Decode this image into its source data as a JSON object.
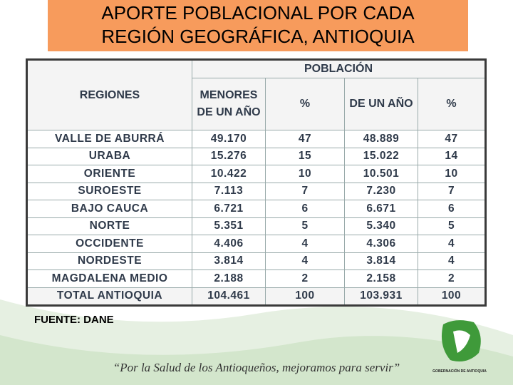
{
  "title": [
    "APORTE POBLACIONAL POR CADA",
    "REGIÓN GEOGRÁFICA, ANTIOQUIA"
  ],
  "table": {
    "group_header": "POBLACIÓN",
    "headers": [
      "REGIONES",
      "MENORES DE UN AÑO",
      "%",
      "DE UN AÑO",
      "%"
    ],
    "rows": [
      [
        "VALLE DE ABURRÁ",
        "49.170",
        "47",
        "48.889",
        "47"
      ],
      [
        "URABA",
        "15.276",
        "15",
        "15.022",
        "14"
      ],
      [
        "ORIENTE",
        "10.422",
        "10",
        "10.501",
        "10"
      ],
      [
        "SUROESTE",
        "7.113",
        "7",
        "7.230",
        "7"
      ],
      [
        "BAJO CAUCA",
        "6.721",
        "6",
        "6.671",
        "6"
      ],
      [
        "NORTE",
        "5.351",
        "5",
        "5.340",
        "5"
      ],
      [
        "OCCIDENTE",
        "4.406",
        "4",
        "4.306",
        "4"
      ],
      [
        "NORDESTE",
        "3.814",
        "4",
        "3.814",
        "4"
      ],
      [
        "MAGDALENA MEDIO",
        "2.188",
        "2",
        "2.158",
        "2"
      ],
      [
        "TOTAL ANTIOQUIA",
        "104.461",
        "100",
        "103.931",
        "100"
      ]
    ]
  },
  "source": "FUENTE: DANE",
  "slogan": "“Por la Salud de los Antioqueños, mejoramos para servir”",
  "organization": "GOBERNACIÓN DE ANTIOQUIA"
}
